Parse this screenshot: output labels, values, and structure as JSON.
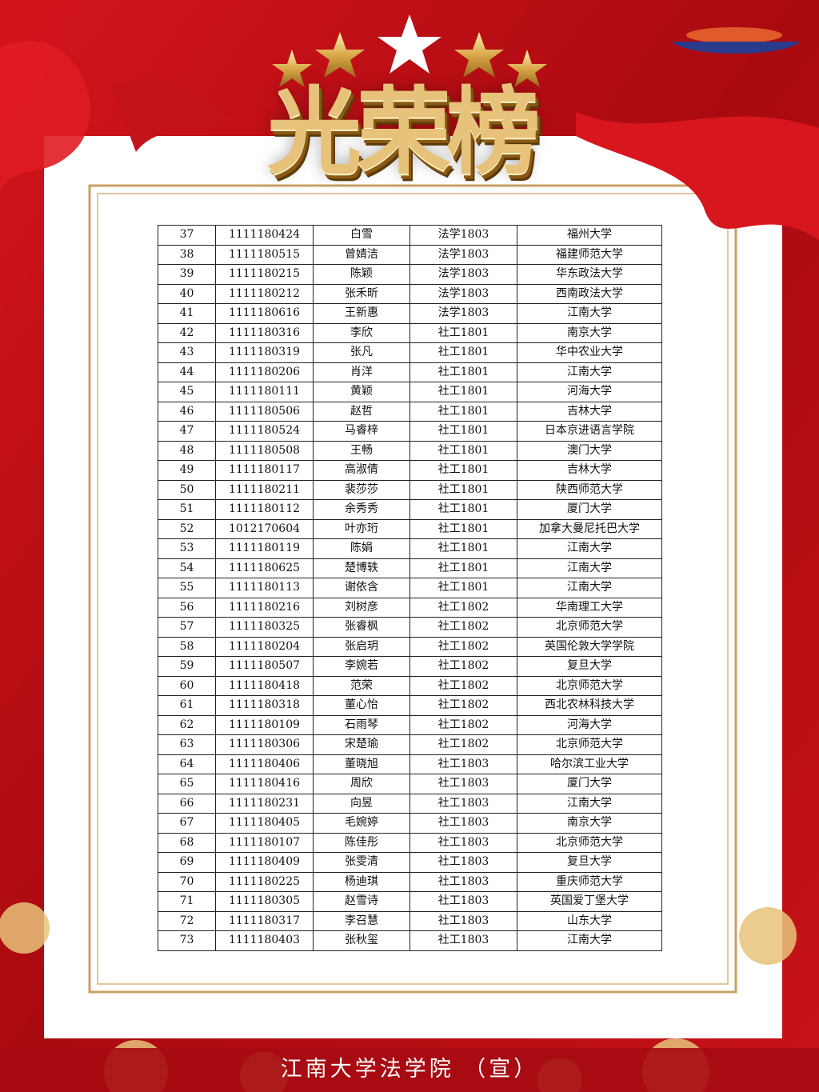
{
  "header": {
    "title": "光荣榜"
  },
  "table": {
    "rows": [
      [
        "37",
        "1111180424",
        "白雪",
        "法学1803",
        "福州大学"
      ],
      [
        "38",
        "1111180515",
        "曾婧洁",
        "法学1803",
        "福建师范大学"
      ],
      [
        "39",
        "1111180215",
        "陈颖",
        "法学1803",
        "华东政法大学"
      ],
      [
        "40",
        "1111180212",
        "张禾昕",
        "法学1803",
        "西南政法大学"
      ],
      [
        "41",
        "1111180616",
        "王新惠",
        "法学1803",
        "江南大学"
      ],
      [
        "42",
        "1111180316",
        "李欣",
        "社工1801",
        "南京大学"
      ],
      [
        "43",
        "1111180319",
        "张凡",
        "社工1801",
        "华中农业大学"
      ],
      [
        "44",
        "1111180206",
        "肖洋",
        "社工1801",
        "江南大学"
      ],
      [
        "45",
        "1111180111",
        "黄颖",
        "社工1801",
        "河海大学"
      ],
      [
        "46",
        "1111180506",
        "赵哲",
        "社工1801",
        "吉林大学"
      ],
      [
        "47",
        "1111180524",
        "马睿梓",
        "社工1801",
        "日本京进语言学院"
      ],
      [
        "48",
        "1111180508",
        "王畅",
        "社工1801",
        "澳门大学"
      ],
      [
        "49",
        "1111180117",
        "高淑倩",
        "社工1801",
        "吉林大学"
      ],
      [
        "50",
        "1111180211",
        "裴莎莎",
        "社工1801",
        "陕西师范大学"
      ],
      [
        "51",
        "1111180112",
        "余秀秀",
        "社工1801",
        "厦门大学"
      ],
      [
        "52",
        "1012170604",
        "叶亦珩",
        "社工1801",
        "加拿大曼尼托巴大学"
      ],
      [
        "53",
        "1111180119",
        "陈娟",
        "社工1801",
        "江南大学"
      ],
      [
        "54",
        "1111180625",
        "楚博轶",
        "社工1801",
        "江南大学"
      ],
      [
        "55",
        "1111180113",
        "谢依含",
        "社工1801",
        "江南大学"
      ],
      [
        "56",
        "1111180216",
        "刘树彦",
        "社工1802",
        "华南理工大学"
      ],
      [
        "57",
        "1111180325",
        "张睿枫",
        "社工1802",
        "北京师范大学"
      ],
      [
        "58",
        "1111180204",
        "张启玥",
        "社工1802",
        "英国伦敦大学学院"
      ],
      [
        "59",
        "1111180507",
        "李婉若",
        "社工1802",
        "复旦大学"
      ],
      [
        "60",
        "1111180418",
        "范荣",
        "社工1802",
        "北京师范大学"
      ],
      [
        "61",
        "1111180318",
        "董心怡",
        "社工1802",
        "西北农林科技大学"
      ],
      [
        "62",
        "1111180109",
        "石雨琴",
        "社工1802",
        "河海大学"
      ],
      [
        "63",
        "1111180306",
        "宋楚瑜",
        "社工1802",
        "北京师范大学"
      ],
      [
        "64",
        "1111180406",
        "董晓旭",
        "社工1803",
        "哈尔滨工业大学"
      ],
      [
        "65",
        "1111180416",
        "周欣",
        "社工1803",
        "厦门大学"
      ],
      [
        "66",
        "1111180231",
        "向昱",
        "社工1803",
        "江南大学"
      ],
      [
        "67",
        "1111180405",
        "毛婉婷",
        "社工1803",
        "南京大学"
      ],
      [
        "68",
        "1111180107",
        "陈佳彤",
        "社工1803",
        "北京师范大学"
      ],
      [
        "69",
        "1111180409",
        "张雯清",
        "社工1803",
        "复旦大学"
      ],
      [
        "70",
        "1111180225",
        "杨迪琪",
        "社工1803",
        "重庆师范大学"
      ],
      [
        "71",
        "1111180305",
        "赵雪诗",
        "社工1803",
        "英国爱丁堡大学"
      ],
      [
        "72",
        "1111180317",
        "李召慧",
        "社工1803",
        "山东大学"
      ],
      [
        "73",
        "1111180403",
        "张秋玺",
        "社工1803",
        "江南大学"
      ]
    ]
  },
  "footer": {
    "text": "江南大学法学院 （宣）"
  }
}
